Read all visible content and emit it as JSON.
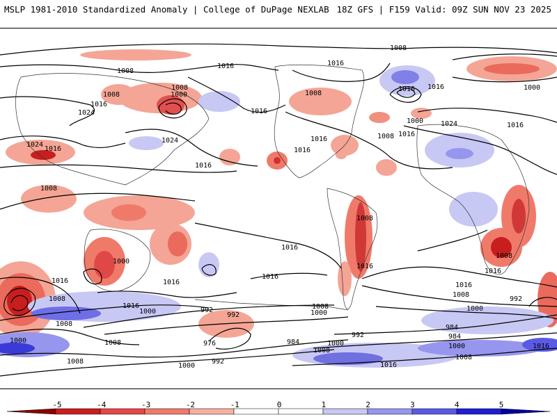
{
  "header": {
    "title": "MSLP 1981-2010 Standardized Anomaly | College of DuPage NEXLAB",
    "run_info": "18Z GFS | F159 Valid: 09Z SUN NOV 23 2025"
  },
  "map": {
    "isobar_labels": [
      "1008",
      "1016",
      "1008",
      "1024",
      "1016",
      "1000",
      "1008",
      "1016",
      "1024",
      "1024",
      "1016",
      "1016",
      "1008",
      "1016",
      "1016",
      "1008",
      "1008",
      "1016",
      "1016",
      "1016",
      "1000",
      "1024",
      "1008",
      "1016",
      "1016",
      "1000",
      "1000",
      "1016",
      "1016",
      "1016",
      "1008",
      "1008",
      "1000",
      "1008",
      "1016",
      "992",
      "1008",
      "1000",
      "1008",
      "1016",
      "1016",
      "992",
      "1000",
      "1008",
      "984",
      "992",
      "1000",
      "1016",
      "1008",
      "992",
      "976",
      "984",
      "1000",
      "1008",
      "1016",
      "1000",
      "992",
      "1008",
      "1000",
      "1016",
      "984",
      "1008",
      "1016"
    ]
  },
  "colorbar": {
    "ticks": [
      "-5",
      "-4",
      "-3",
      "-2",
      "-1",
      "0",
      "1",
      "2",
      "3",
      "4",
      "5"
    ],
    "colors": [
      "#8b0000",
      "#c81e1e",
      "#e64646",
      "#f07a6a",
      "#f7b0a0",
      "#ffffff",
      "#ffffff",
      "#c8c8f5",
      "#9696ef",
      "#5a5ae6",
      "#1e1ed2",
      "#0000a0"
    ]
  }
}
